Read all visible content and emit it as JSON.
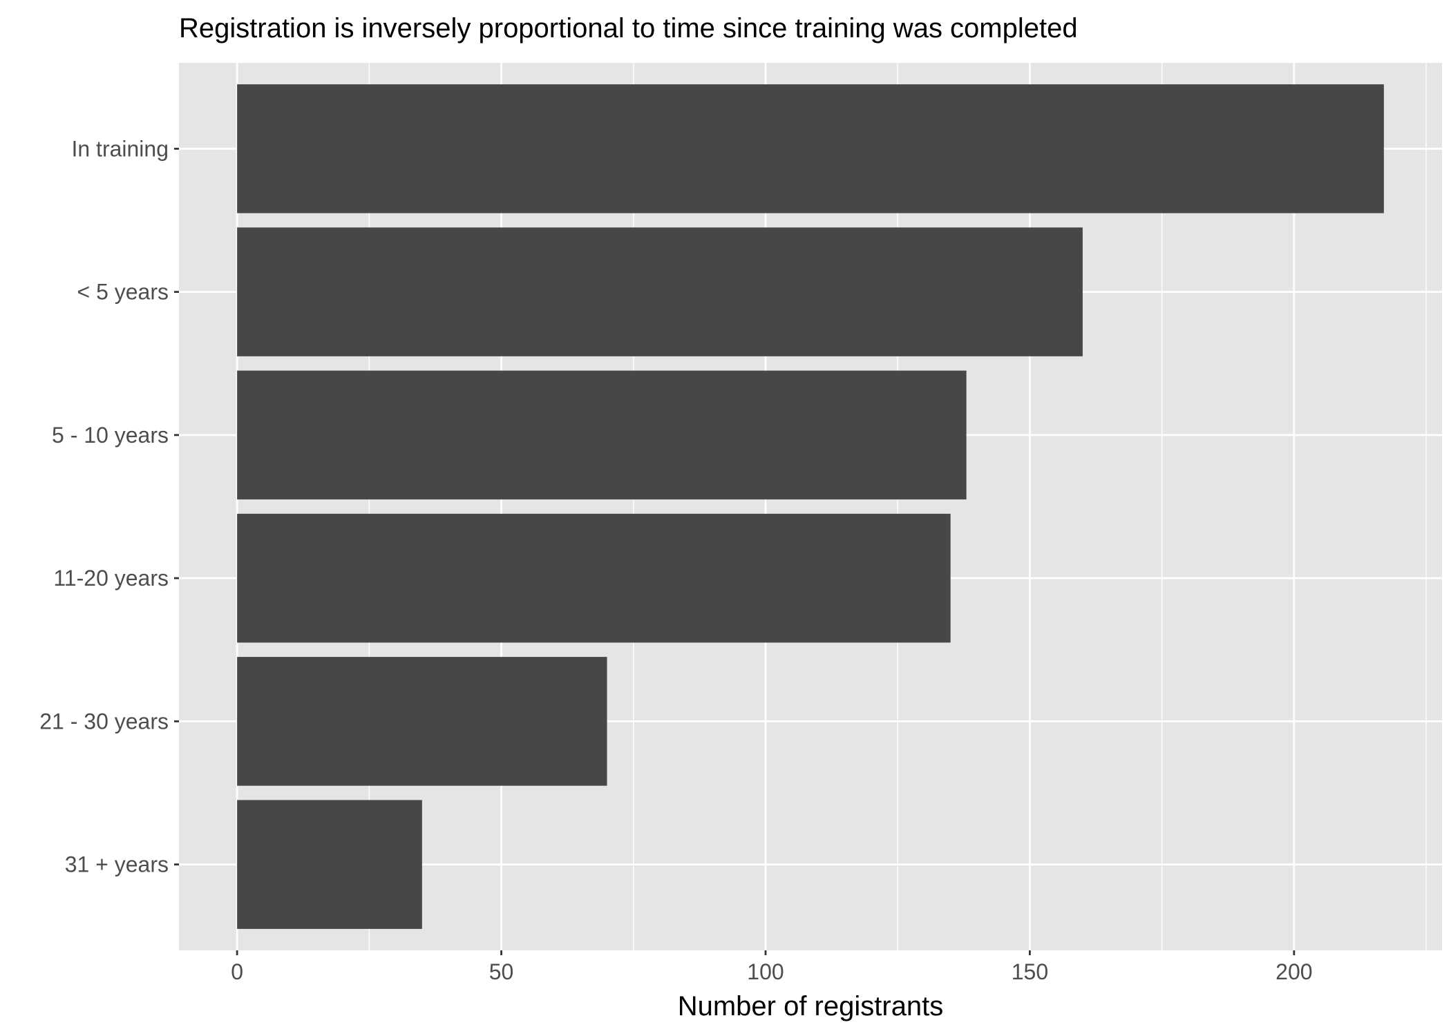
{
  "chart_data": {
    "type": "bar",
    "orientation": "horizontal",
    "title": "Registration is inversely proportional to time since training was completed",
    "xlabel": "Number of registrants",
    "ylabel": "",
    "categories": [
      "In training",
      "< 5 years",
      "5 - 10 years",
      "11-20 years",
      "21 - 30 years",
      "31 + years"
    ],
    "values": [
      217,
      160,
      138,
      135,
      70,
      35
    ],
    "xlim": [
      -11,
      228
    ],
    "x_ticks": [
      0,
      50,
      100,
      150,
      200
    ],
    "x_tick_labels": [
      "0",
      "50",
      "100",
      "150",
      "200"
    ],
    "grid": true,
    "legend": "none",
    "colors": {
      "bar": "#474747",
      "panel": "#e5e5e5",
      "grid": "#ffffff",
      "tick": "#333333",
      "tick_label": "#4d4d4d"
    }
  }
}
